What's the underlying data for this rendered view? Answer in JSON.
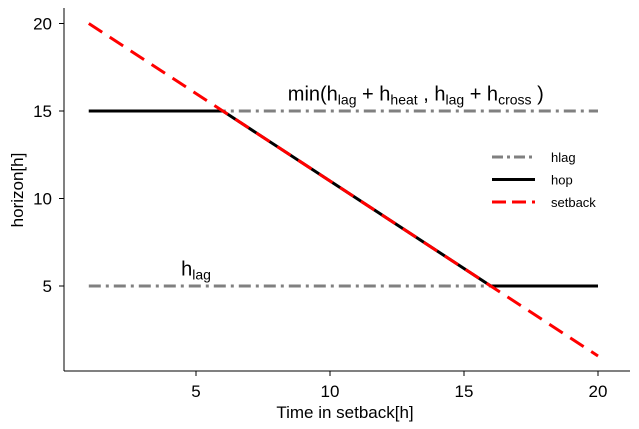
{
  "chart_data": {
    "type": "line",
    "xlabel": "Time in setback[h]",
    "ylabel": "horizon[h]",
    "xlim": [
      0,
      21
    ],
    "ylim": [
      0.5,
      21.1
    ],
    "xticks": [
      5,
      10,
      15,
      20
    ],
    "yticks": [
      5,
      10,
      15,
      20
    ],
    "grid": false,
    "legend_position": "right",
    "series": [
      {
        "name": "hlag",
        "color": "#808080",
        "style": "dash-dot",
        "segments": [
          {
            "x": [
              1,
              20
            ],
            "y": [
              5,
              5
            ]
          },
          {
            "x": [
              1,
              20
            ],
            "y": [
              15,
              15
            ]
          }
        ]
      },
      {
        "name": "hop",
        "color": "#000000",
        "style": "solid",
        "x": [
          1,
          6,
          16,
          20
        ],
        "y": [
          15,
          15,
          5,
          5
        ]
      },
      {
        "name": "setback",
        "color": "#ff0000",
        "style": "dashed",
        "x": [
          1,
          20
        ],
        "y": [
          20,
          1
        ]
      }
    ],
    "annotations": [
      {
        "x": 13.2,
        "y": 15.6,
        "parts": [
          {
            "t": "min(h"
          },
          {
            "t": "lag",
            "sub": true
          },
          {
            "t": " + h"
          },
          {
            "t": "heat",
            "sub": true
          },
          {
            "t": " , h"
          },
          {
            "t": "lag",
            "sub": true
          },
          {
            "t": " + h"
          },
          {
            "t": "cross",
            "sub": true
          },
          {
            "t": " )"
          }
        ]
      },
      {
        "x": 5,
        "y": 5.6,
        "parts": [
          {
            "t": "h"
          },
          {
            "t": "lag",
            "sub": true
          }
        ]
      }
    ]
  }
}
